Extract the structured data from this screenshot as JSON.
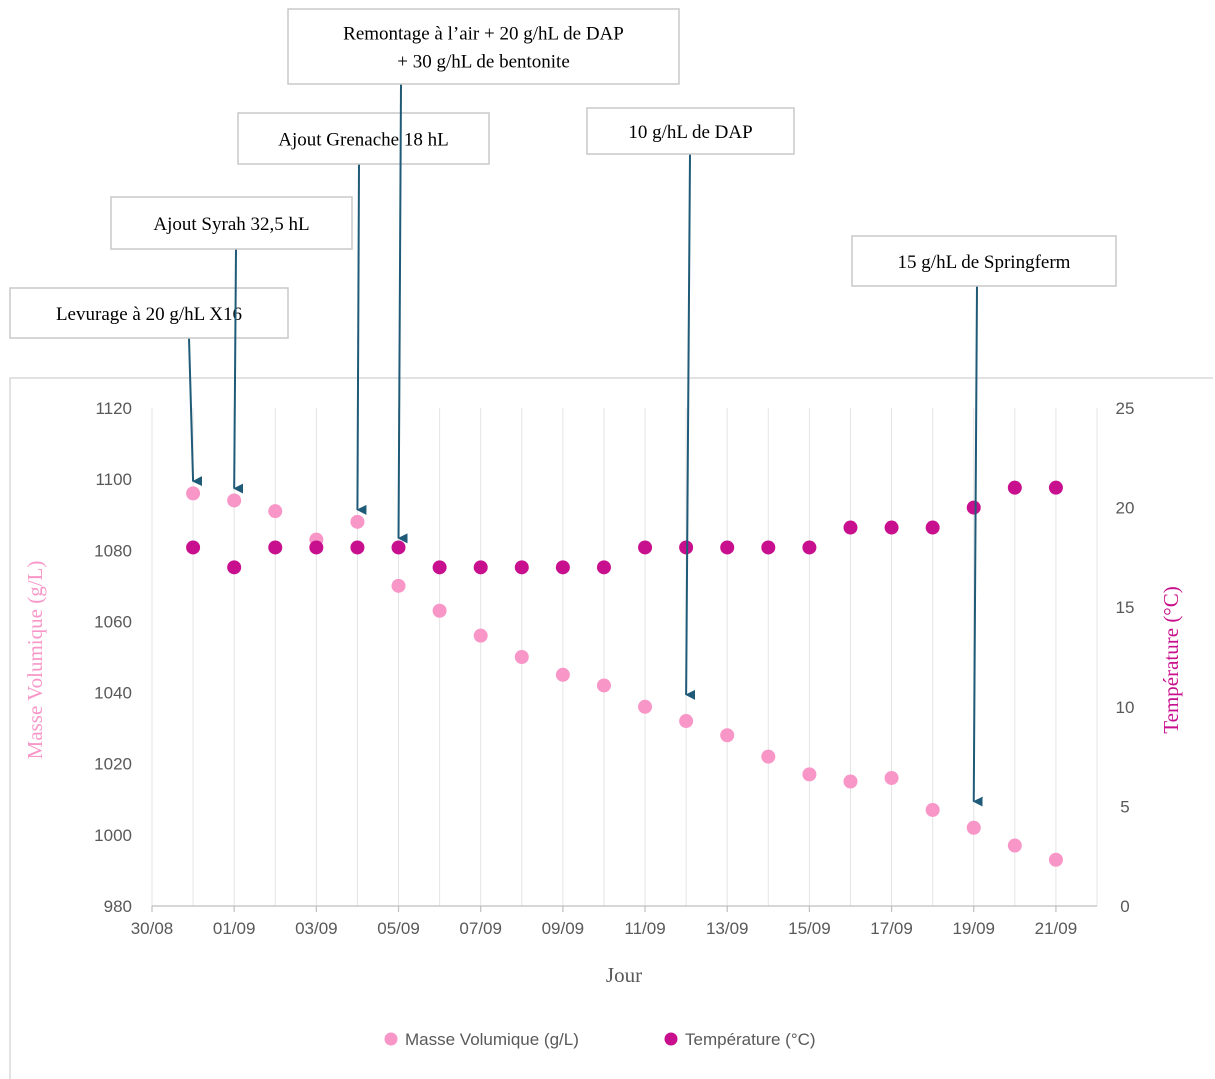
{
  "chart_data": {
    "type": "scatter",
    "xlabel": "Jour",
    "y_left_label": "Masse Volumique (g/L)",
    "y_right_label": "Température (°C)",
    "x_tick_labels": [
      "30/08",
      "01/09",
      "03/09",
      "05/09",
      "07/09",
      "09/09",
      "11/09",
      "13/09",
      "15/09",
      "17/09",
      "19/09",
      "21/09"
    ],
    "y_left_ticks": [
      980,
      1000,
      1020,
      1040,
      1060,
      1080,
      1100,
      1120
    ],
    "y_right_ticks": [
      0,
      5,
      10,
      15,
      20,
      25
    ],
    "y_left_range": [
      980,
      1120
    ],
    "y_right_range": [
      0,
      25
    ],
    "grid": "vertical",
    "legend_position": "bottom",
    "series": [
      {
        "name": "Masse Volumique (g/L)",
        "axis": "left",
        "color": "#F896C8",
        "points": [
          {
            "x": "31/08",
            "y": 1096
          },
          {
            "x": "01/09",
            "y": 1094
          },
          {
            "x": "02/09",
            "y": 1091
          },
          {
            "x": "03/09",
            "y": 1083
          },
          {
            "x": "04/09",
            "y": 1088
          },
          {
            "x": "05/09",
            "y": 1070
          },
          {
            "x": "06/09",
            "y": 1063
          },
          {
            "x": "07/09",
            "y": 1056
          },
          {
            "x": "08/09",
            "y": 1050
          },
          {
            "x": "09/09",
            "y": 1045
          },
          {
            "x": "10/09",
            "y": 1042
          },
          {
            "x": "11/09",
            "y": 1036
          },
          {
            "x": "12/09",
            "y": 1032
          },
          {
            "x": "13/09",
            "y": 1028
          },
          {
            "x": "14/09",
            "y": 1022
          },
          {
            "x": "15/09",
            "y": 1017
          },
          {
            "x": "16/09",
            "y": 1015
          },
          {
            "x": "17/09",
            "y": 1016
          },
          {
            "x": "18/09",
            "y": 1007
          },
          {
            "x": "19/09",
            "y": 1002
          },
          {
            "x": "20/09",
            "y": 997
          },
          {
            "x": "21/09",
            "y": 993
          }
        ]
      },
      {
        "name": "Température (°C)",
        "axis": "right",
        "color": "#C8108E",
        "points": [
          {
            "x": "31/08",
            "y": 18
          },
          {
            "x": "01/09",
            "y": 17
          },
          {
            "x": "02/09",
            "y": 18
          },
          {
            "x": "03/09",
            "y": 18
          },
          {
            "x": "04/09",
            "y": 18
          },
          {
            "x": "05/09",
            "y": 18
          },
          {
            "x": "06/09",
            "y": 17
          },
          {
            "x": "07/09",
            "y": 17
          },
          {
            "x": "08/09",
            "y": 17
          },
          {
            "x": "09/09",
            "y": 17
          },
          {
            "x": "10/09",
            "y": 17
          },
          {
            "x": "11/09",
            "y": 18
          },
          {
            "x": "12/09",
            "y": 18
          },
          {
            "x": "13/09",
            "y": 18
          },
          {
            "x": "14/09",
            "y": 18
          },
          {
            "x": "15/09",
            "y": 18
          },
          {
            "x": "16/09",
            "y": 19
          },
          {
            "x": "17/09",
            "y": 19
          },
          {
            "x": "18/09",
            "y": 19
          },
          {
            "x": "19/09",
            "y": 20
          },
          {
            "x": "20/09",
            "y": 21
          },
          {
            "x": "21/09",
            "y": 21
          }
        ]
      }
    ],
    "annotations": [
      {
        "lines": [
          "Levurage à 20 g/hL X16"
        ],
        "target_date": "31/08",
        "target_value": 1096
      },
      {
        "lines": [
          "Ajout Syrah 32,5 hL"
        ],
        "target_date": "01/09",
        "target_value": 1094
      },
      {
        "lines": [
          "Ajout Grenache 18 hL"
        ],
        "target_date": "04/09",
        "target_value": 1088
      },
      {
        "lines": [
          "Remontage à l’air + 20 g/hL de DAP",
          "+ 30 g/hL de bentonite"
        ],
        "target_date": "05/09",
        "target_value": 1080
      },
      {
        "lines": [
          "10 g/hL de DAP"
        ],
        "target_date": "12/09",
        "target_value": 1036
      },
      {
        "lines": [
          "15 g/hL de Springferm"
        ],
        "target_date": "19/09",
        "target_value": 1006
      }
    ],
    "colors": {
      "left_axis_title": "#F896C8",
      "right_axis_title": "#C8108E",
      "arrow": "#1F5A78"
    }
  }
}
